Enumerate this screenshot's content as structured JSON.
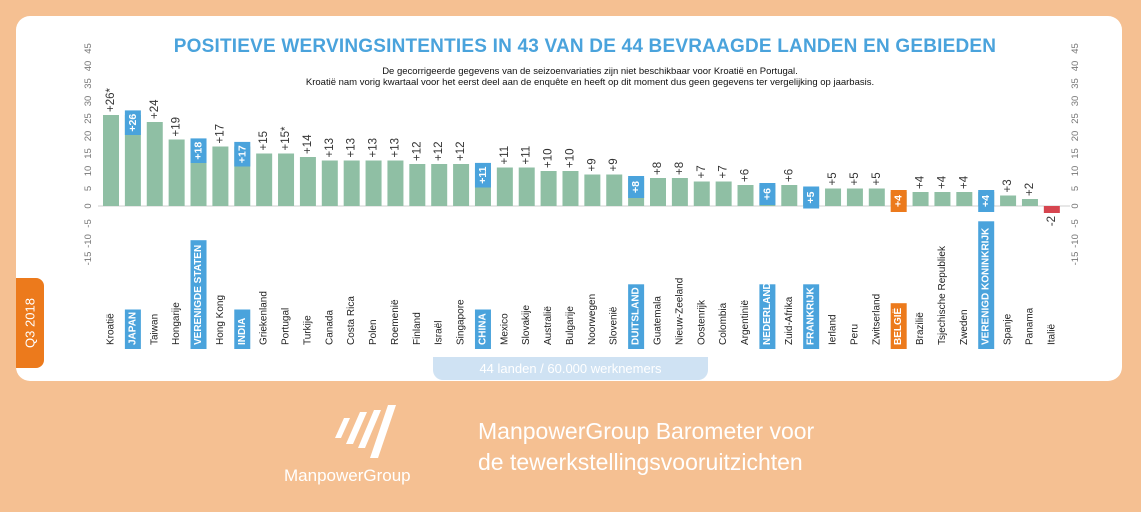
{
  "title": "POSITIEVE WERVINGSINTENTIES IN 43 VAN DE 44 BEVRAAGDE LANDEN EN GEBIEDEN",
  "subtitle": [
    "De gecorrigeerde gegevens van de seizoenvariaties zijn niet beschikbaar voor Kroatië en Portugal.",
    "Kroatië nam vorig kwartaal voor het eerst deel aan de enquête en heeft op dit moment dus geen gegevens ter vergelijking op jaarbasis."
  ],
  "side_tab": "Q3 2018",
  "footer_pill": "44 landen / 60.000 werknemers",
  "brand": {
    "logo_text": "ManpowerGroup",
    "tagline_line1": "ManpowerGroup Barometer voor",
    "tagline_line2": "de tewerkstellingsvooruitzichten"
  },
  "colors": {
    "bar_normal": "#8fbfa4",
    "bar_negative": "#d6454f",
    "highlight_blue": "#4aa3dc",
    "highlight_orange": "#ec7a1c",
    "background": "#f5c092",
    "title": "#4aa3dc"
  },
  "chart_data": {
    "type": "bar",
    "ylim": [
      -15,
      45
    ],
    "yticks": [
      -15,
      -10,
      -5,
      0,
      5,
      10,
      15,
      20,
      25,
      30,
      35,
      40,
      45
    ],
    "grid": false,
    "categories": [
      "Kroatië",
      "JAPAN",
      "Taiwan",
      "Hongarije",
      "VERENIGDE STATEN",
      "Hong Kong",
      "INDIA",
      "Griekenland",
      "Portugal",
      "Turkije",
      "Canada",
      "Costa Rica",
      "Polen",
      "Roemenië",
      "Finland",
      "Israël",
      "Singapore",
      "CHINA",
      "Mexico",
      "Slovakije",
      "Australië",
      "Bulgarije",
      "Noorwegen",
      "Slovenië",
      "DUITSLAND",
      "Guatemala",
      "Nieuw-Zeeland",
      "Oostenrijk",
      "Colombia",
      "Argentinië",
      "NEDERLAND",
      "Zuid-Afrika",
      "FRANKRIJK",
      "Ierland",
      "Peru",
      "Zwitserland",
      "BELGIË",
      "Brazilië",
      "Tsjechische Republiek",
      "Zweden",
      "VERENIGD KONINKRIJK",
      "Spanje",
      "Panama",
      "Italië"
    ],
    "values": [
      26,
      26,
      24,
      19,
      18,
      17,
      17,
      15,
      15,
      14,
      13,
      13,
      13,
      13,
      12,
      12,
      12,
      11,
      11,
      11,
      10,
      10,
      9,
      9,
      8,
      8,
      8,
      7,
      7,
      6,
      6,
      6,
      5,
      5,
      5,
      5,
      4,
      4,
      4,
      4,
      4,
      3,
      2,
      -2
    ],
    "value_labels": [
      "+26*",
      "+26",
      "+24",
      "+19",
      "+18",
      "+17",
      "+17",
      "+15",
      "+15*",
      "+14",
      "+13",
      "+13",
      "+13",
      "+13",
      "+12",
      "+12",
      "+12",
      "+11",
      "+11",
      "+11",
      "+10",
      "+10",
      "+9",
      "+9",
      "+8",
      "+8",
      "+8",
      "+7",
      "+7",
      "+6",
      "+6",
      "+6",
      "+5",
      "+5",
      "+5",
      "+5",
      "+4",
      "+4",
      "+4",
      "+4",
      "+4",
      "+3",
      "+2",
      "-2"
    ],
    "highlight": [
      "",
      "blue",
      "",
      "",
      "blue",
      "",
      "blue",
      "",
      "",
      "",
      "",
      "",
      "",
      "",
      "",
      "",
      "",
      "blue",
      "",
      "",
      "",
      "",
      "",
      "",
      "blue",
      "",
      "",
      "",
      "",
      "",
      "blue",
      "",
      "blue",
      "",
      "",
      "",
      "orange",
      "",
      "",
      "",
      "blue",
      "",
      "",
      ""
    ]
  }
}
